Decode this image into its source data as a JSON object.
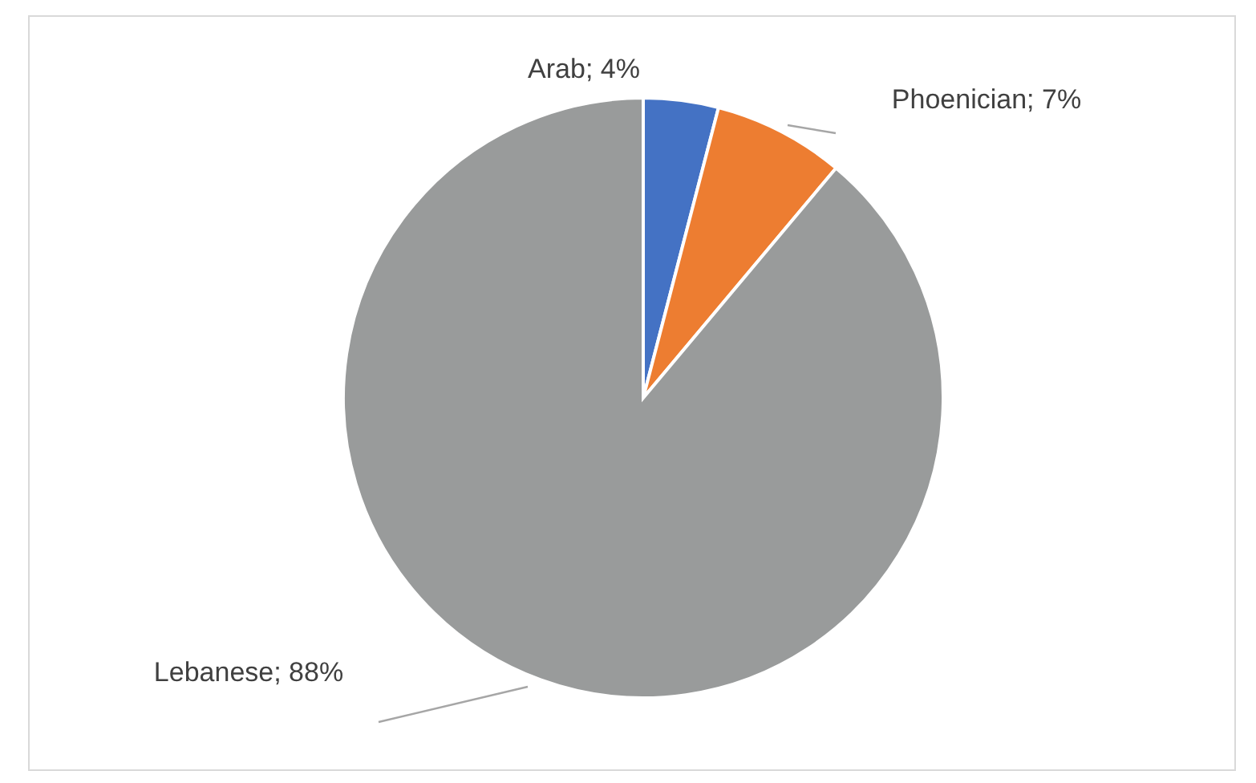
{
  "chart_data": {
    "type": "pie",
    "categories": [
      "Arab",
      "Phoenician",
      "Lebanese"
    ],
    "values": [
      4,
      7,
      88
    ],
    "colors": [
      "#4472c4",
      "#ed7d31",
      "#999b9b"
    ],
    "value_labels": [
      "4%",
      "7%",
      "88%"
    ],
    "legend": false
  }
}
